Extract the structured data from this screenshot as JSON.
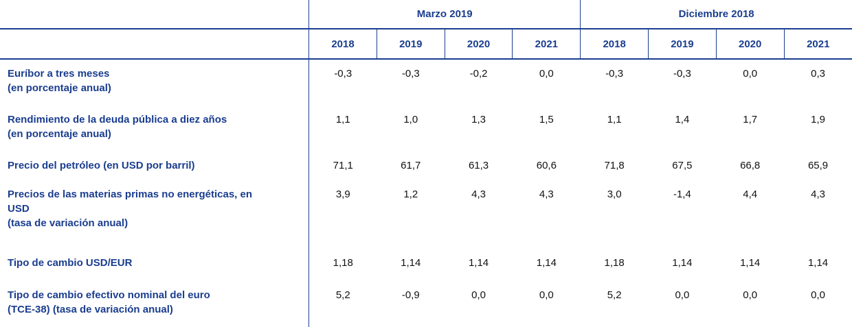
{
  "header": {
    "groups": [
      "Marzo 2019",
      "Diciembre 2018"
    ],
    "years": [
      "2018",
      "2019",
      "2020",
      "2021",
      "2018",
      "2019",
      "2020",
      "2021"
    ]
  },
  "rows": [
    {
      "label_line1": "Euríbor a tres meses",
      "label_line2": "(en porcentaje anual)",
      "label_line3": "",
      "values": [
        "-0,3",
        "-0,3",
        "-0,2",
        "0,0",
        "-0,3",
        "-0,3",
        "0,0",
        "0,3"
      ]
    },
    {
      "label_line1": "Rendimiento de la deuda pública a diez años",
      "label_line2": "(en porcentaje anual)",
      "label_line3": "",
      "values": [
        "1,1",
        "1,0",
        "1,3",
        "1,5",
        "1,1",
        "1,4",
        "1,7",
        "1,9"
      ]
    },
    {
      "label_line1": "Precio del petróleo (en USD por barril)",
      "label_line2": "",
      "label_line3": "",
      "values": [
        "71,1",
        "61,7",
        "61,3",
        "60,6",
        "71,8",
        "67,5",
        "66,8",
        "65,9"
      ]
    },
    {
      "label_line1": "Precios de las materias primas no energéticas, en",
      "label_line2": "USD",
      "label_line3": "(tasa de variación anual)",
      "values": [
        "3,9",
        "1,2",
        "4,3",
        "4,3",
        "3,0",
        "-1,4",
        "4,4",
        "4,3"
      ]
    },
    {
      "label_line1": "Tipo de cambio USD/EUR",
      "label_line2": "",
      "label_line3": "",
      "values": [
        "1,18",
        "1,14",
        "1,14",
        "1,14",
        "1,18",
        "1,14",
        "1,14",
        "1,14"
      ]
    },
    {
      "label_line1": "Tipo de cambio efectivo nominal del euro",
      "label_line2": "(TCE-38) (tasa de variación anual)",
      "label_line3": "",
      "values": [
        "5,2",
        "-0,9",
        "0,0",
        "0,0",
        "5,2",
        "0,0",
        "0,0",
        "0,0"
      ]
    }
  ]
}
